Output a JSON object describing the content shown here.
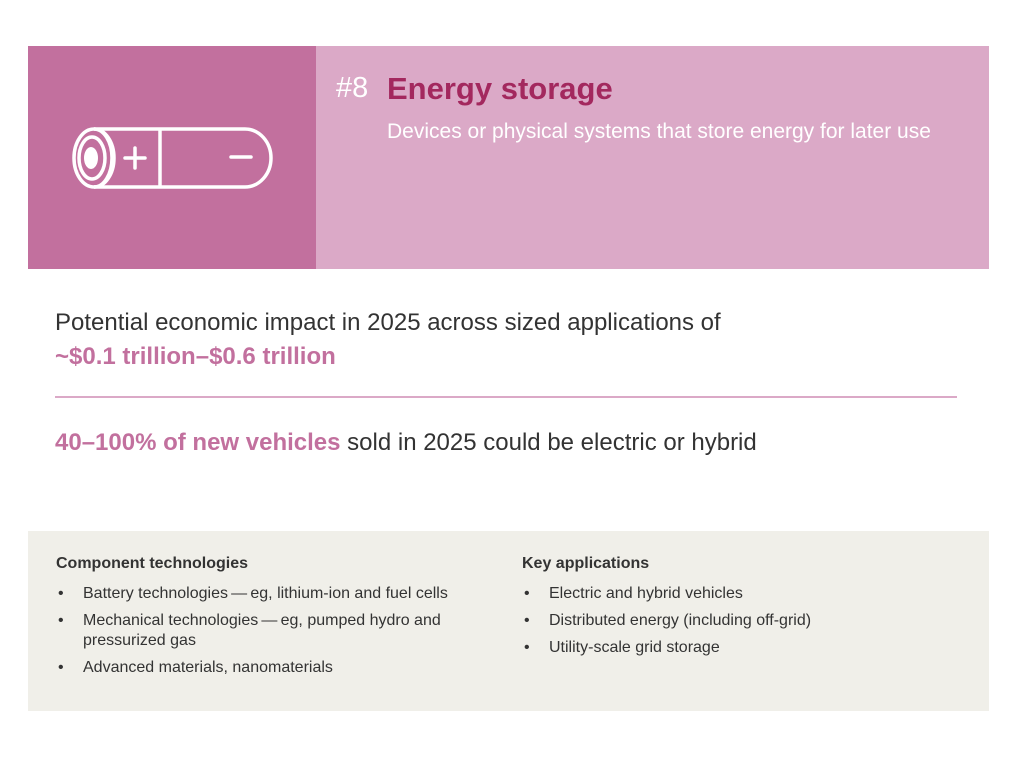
{
  "header": {
    "number": "#8",
    "title": "Energy storage",
    "subtitle": "Devices or physical systems that store energy for later use",
    "icon": "battery-icon"
  },
  "impact": {
    "text": "Potential economic impact in 2025 across sized applications of",
    "value": "~$0.1 trillion–$0.6 trillion"
  },
  "vehicles": {
    "highlight": "40–100% of new vehicles",
    "rest": " sold in 2025 could be electric or hybrid"
  },
  "component_technologies": {
    "heading": "Component technologies",
    "items": [
      "Battery technologies — eg, lithium-ion and fuel cells",
      "Mechanical technologies — eg, pumped hydro and pressurized gas",
      "Advanced materials, nanomaterials"
    ]
  },
  "key_applications": {
    "heading": "Key applications",
    "items": [
      "Electric and hybrid vehicles",
      "Distributed energy (including off-grid)",
      "Utility-scale grid storage"
    ]
  },
  "colors": {
    "accent_dark": "#c2709e",
    "accent_light": "#dba9c7",
    "title_color": "#a3285e",
    "box_bg": "#f0efe9"
  }
}
